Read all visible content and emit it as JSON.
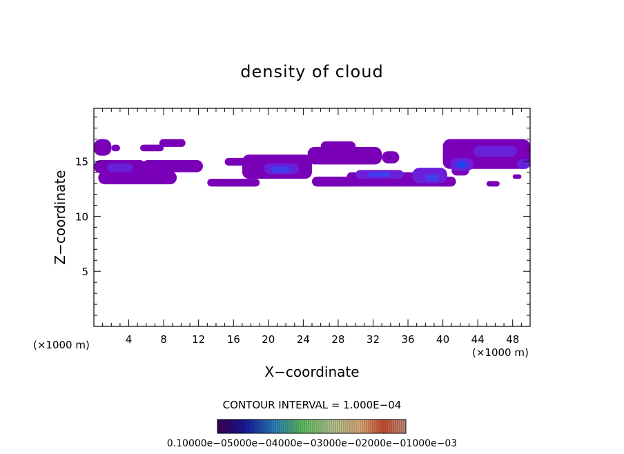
{
  "chart_data": {
    "type": "heatmap",
    "title": "density of cloud",
    "xlabel": "X−coordinate",
    "ylabel": "Z−coordinate",
    "x_unit_left": "(×1000 m)",
    "x_unit_right": "(×1000 m)",
    "xlim": [
      0,
      50
    ],
    "ylim": [
      0,
      19.8
    ],
    "x_ticks": [
      4,
      8,
      12,
      16,
      20,
      24,
      28,
      32,
      36,
      40,
      44,
      48
    ],
    "y_ticks": [
      5,
      10,
      15
    ],
    "contour_interval_label": "CONTOUR INTERVAL = 1.000E−04",
    "colorbar_label": "0.10000e−05000e−04000e−03000e−02000e−01000e−03",
    "colors": {
      "low": "#7a00b8",
      "mid": "#6a1fd8",
      "high": "#3f3ff0",
      "peak": "#1e46f0"
    },
    "cloud_regions": [
      {
        "x0": 0,
        "x1": 2.0,
        "z0": 15.5,
        "z1": 17.0,
        "level": "low"
      },
      {
        "x0": 2.0,
        "x1": 3.0,
        "z0": 15.9,
        "z1": 16.5,
        "level": "low"
      },
      {
        "x0": 5.3,
        "x1": 8.0,
        "z0": 15.9,
        "z1": 16.5,
        "level": "low"
      },
      {
        "x0": 7.5,
        "x1": 10.5,
        "z0": 16.3,
        "z1": 17.0,
        "level": "low"
      },
      {
        "x0": 0,
        "x1": 6.0,
        "z0": 13.9,
        "z1": 15.1,
        "level": "low"
      },
      {
        "x0": 5.5,
        "x1": 12.5,
        "z0": 14.0,
        "z1": 15.1,
        "level": "low"
      },
      {
        "x0": 0.5,
        "x1": 9.5,
        "z0": 12.9,
        "z1": 14.1,
        "level": "low"
      },
      {
        "x0": 1.5,
        "x1": 4.5,
        "z0": 14.0,
        "z1": 14.8,
        "level": "mid"
      },
      {
        "x0": 15.0,
        "x1": 18.0,
        "z0": 14.6,
        "z1": 15.3,
        "level": "low"
      },
      {
        "x0": 17.0,
        "x1": 25.0,
        "z0": 13.4,
        "z1": 15.6,
        "level": "low"
      },
      {
        "x0": 19.5,
        "x1": 23.5,
        "z0": 13.8,
        "z1": 14.8,
        "level": "mid"
      },
      {
        "x0": 20.3,
        "x1": 22.5,
        "z0": 14.0,
        "z1": 14.5,
        "level": "high"
      },
      {
        "x0": 13.0,
        "x1": 19.0,
        "z0": 12.7,
        "z1": 13.4,
        "level": "low"
      },
      {
        "x0": 24.5,
        "x1": 33.0,
        "z0": 14.7,
        "z1": 16.3,
        "level": "low"
      },
      {
        "x0": 26.0,
        "x1": 30.0,
        "z0": 15.9,
        "z1": 16.8,
        "level": "low"
      },
      {
        "x0": 33.0,
        "x1": 35.0,
        "z0": 14.8,
        "z1": 15.9,
        "level": "low"
      },
      {
        "x0": 25.0,
        "x1": 41.5,
        "z0": 12.7,
        "z1": 13.6,
        "level": "low"
      },
      {
        "x0": 29.0,
        "x1": 38.5,
        "z0": 13.2,
        "z1": 14.0,
        "level": "low"
      },
      {
        "x0": 30.0,
        "x1": 35.5,
        "z0": 13.4,
        "z1": 14.2,
        "level": "mid"
      },
      {
        "x0": 31.5,
        "x1": 34.0,
        "z0": 13.6,
        "z1": 14.0,
        "level": "high"
      },
      {
        "x0": 36.5,
        "x1": 40.5,
        "z0": 13.0,
        "z1": 14.4,
        "level": "mid"
      },
      {
        "x0": 38.0,
        "x1": 39.5,
        "z0": 13.2,
        "z1": 13.8,
        "level": "high"
      },
      {
        "x0": 40.0,
        "x1": 50.0,
        "z0": 14.3,
        "z1": 17.0,
        "level": "low"
      },
      {
        "x0": 41.0,
        "x1": 43.0,
        "z0": 13.7,
        "z1": 14.6,
        "level": "low"
      },
      {
        "x0": 40.8,
        "x1": 43.5,
        "z0": 14.1,
        "z1": 15.3,
        "level": "mid"
      },
      {
        "x0": 41.5,
        "x1": 42.8,
        "z0": 14.4,
        "z1": 15.0,
        "level": "peak"
      },
      {
        "x0": 43.5,
        "x1": 48.5,
        "z0": 15.4,
        "z1": 16.4,
        "level": "mid"
      },
      {
        "x0": 48.5,
        "x1": 50.0,
        "z0": 14.3,
        "z1": 15.2,
        "level": "mid"
      },
      {
        "x0": 45.0,
        "x1": 46.5,
        "z0": 12.7,
        "z1": 13.2,
        "level": "low"
      },
      {
        "x0": 48.0,
        "x1": 49.0,
        "z0": 13.4,
        "z1": 13.8,
        "level": "low"
      }
    ]
  }
}
